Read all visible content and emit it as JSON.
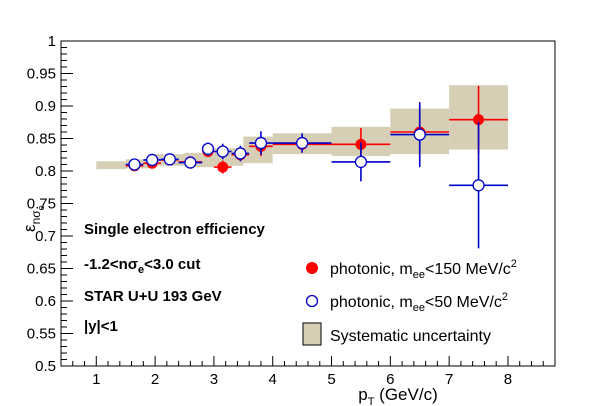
{
  "chart_data": {
    "type": "scatter",
    "xlabel": "p_T (GeV/c)",
    "ylabel": "ε_nσe",
    "xlim": [
      0.4,
      8.8
    ],
    "ylim": [
      0.5,
      1.0
    ],
    "xticks": [
      "1",
      "2",
      "3",
      "4",
      "5",
      "6",
      "7",
      "8"
    ],
    "yticks": [
      "0.5",
      "0.55",
      "0.6",
      "0.65",
      "0.7",
      "0.75",
      "0.8",
      "0.85",
      "0.9",
      "0.95",
      "1"
    ],
    "annotations": [
      "Single electron efficiency",
      "-1.2<nσ_e<3.0 cut",
      "STAR U+U 193 GeV",
      "|y|<1"
    ],
    "legend_placement": "bottom-right",
    "series": [
      {
        "name": "photonic, m_ee<150 MeV/c²",
        "color": "#ff0000",
        "marker": "filled-circle",
        "points": [
          {
            "x": 1.65,
            "y": 0.808,
            "xerr": 0.15,
            "yerr": 0.004
          },
          {
            "x": 1.95,
            "y": 0.812,
            "xerr": 0.15,
            "yerr": 0.005
          },
          {
            "x": 2.25,
            "y": 0.817,
            "xerr": 0.15,
            "yerr": 0.005
          },
          {
            "x": 2.6,
            "y": 0.814,
            "xerr": 0.2,
            "yerr": 0.005
          },
          {
            "x": 2.9,
            "y": 0.83,
            "xerr": 0.1,
            "yerr": 0.008
          },
          {
            "x": 3.15,
            "y": 0.806,
            "xerr": 0.15,
            "yerr": 0.01
          },
          {
            "x": 3.45,
            "y": 0.825,
            "xerr": 0.15,
            "yerr": 0.01
          },
          {
            "x": 3.8,
            "y": 0.838,
            "xerr": 0.2,
            "yerr": 0.015
          },
          {
            "x": 4.5,
            "y": 0.841,
            "xerr": 0.5,
            "yerr": 0.01
          },
          {
            "x": 5.5,
            "y": 0.841,
            "xerr": 0.5,
            "yerr": 0.025
          },
          {
            "x": 6.5,
            "y": 0.86,
            "xerr": 0.5,
            "yerr": 0.04
          },
          {
            "x": 7.5,
            "y": 0.879,
            "xerr": 0.5,
            "yerr": 0.052
          }
        ]
      },
      {
        "name": "photonic, m_ee<50 MeV/c²",
        "color": "#0000cc",
        "marker": "open-circle",
        "points": [
          {
            "x": 1.65,
            "y": 0.81,
            "xerr": 0.15,
            "yerr": 0.006
          },
          {
            "x": 1.95,
            "y": 0.817,
            "xerr": 0.15,
            "yerr": 0.006
          },
          {
            "x": 2.25,
            "y": 0.818,
            "xerr": 0.15,
            "yerr": 0.006
          },
          {
            "x": 2.6,
            "y": 0.813,
            "xerr": 0.2,
            "yerr": 0.008
          },
          {
            "x": 2.9,
            "y": 0.834,
            "xerr": 0.1,
            "yerr": 0.01
          },
          {
            "x": 3.15,
            "y": 0.83,
            "xerr": 0.15,
            "yerr": 0.012
          },
          {
            "x": 3.45,
            "y": 0.827,
            "xerr": 0.15,
            "yerr": 0.012
          },
          {
            "x": 3.8,
            "y": 0.843,
            "xerr": 0.2,
            "yerr": 0.018
          },
          {
            "x": 4.5,
            "y": 0.843,
            "xerr": 0.5,
            "yerr": 0.015
          },
          {
            "x": 5.5,
            "y": 0.814,
            "xerr": 0.5,
            "yerr": 0.03
          },
          {
            "x": 6.5,
            "y": 0.856,
            "xerr": 0.5,
            "yerr": 0.05
          },
          {
            "x": 7.5,
            "y": 0.778,
            "xerr": 0.5,
            "yerr": 0.097
          }
        ]
      },
      {
        "name": "Systematic uncertainty",
        "color": "#d6cfb6",
        "marker": "box",
        "boxes": [
          {
            "x0": 1.0,
            "x1": 1.5,
            "y0": 0.803,
            "y1": 0.815
          },
          {
            "x0": 1.5,
            "x1": 2.0,
            "y0": 0.804,
            "y1": 0.818
          },
          {
            "x0": 2.0,
            "x1": 2.5,
            "y0": 0.808,
            "y1": 0.826
          },
          {
            "x0": 2.5,
            "x1": 3.0,
            "y0": 0.806,
            "y1": 0.828
          },
          {
            "x0": 3.0,
            "x1": 3.5,
            "y0": 0.808,
            "y1": 0.835
          },
          {
            "x0": 3.5,
            "x1": 4.0,
            "y0": 0.812,
            "y1": 0.853
          },
          {
            "x0": 4.0,
            "x1": 5.0,
            "y0": 0.826,
            "y1": 0.858
          },
          {
            "x0": 5.0,
            "x1": 6.0,
            "y0": 0.823,
            "y1": 0.868
          },
          {
            "x0": 6.0,
            "x1": 7.0,
            "y0": 0.826,
            "y1": 0.896
          },
          {
            "x0": 7.0,
            "x1": 8.0,
            "y0": 0.833,
            "y1": 0.932
          }
        ]
      }
    ]
  }
}
